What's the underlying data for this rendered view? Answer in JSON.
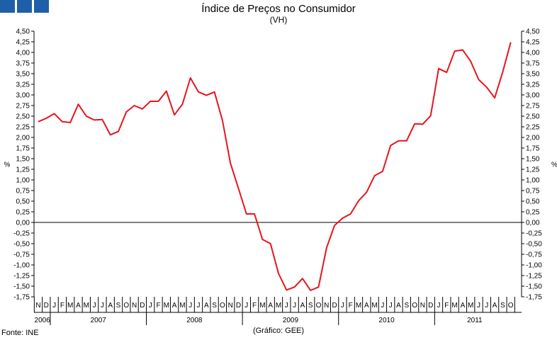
{
  "header": {
    "title": "Índice de Preços no Consumidor",
    "subtitle": "(VH)"
  },
  "footer": {
    "source": "Fonte: INE",
    "credit": "(Gráfico: GEE)"
  },
  "colors": {
    "logo": "#1f5fa8",
    "series": "#e8141c",
    "axis": "#000000"
  },
  "chart_data": {
    "type": "line",
    "title": "Índice de Preços no Consumidor",
    "subtitle": "(VH)",
    "ylabel": "%",
    "ylim": [
      -1.75,
      4.5
    ],
    "yticks": [
      4.5,
      4.25,
      4.0,
      3.75,
      3.5,
      3.25,
      3.0,
      2.75,
      2.5,
      2.25,
      2.0,
      1.75,
      1.5,
      1.25,
      1.0,
      0.75,
      0.5,
      0.25,
      0.0,
      -0.25,
      -0.5,
      -0.75,
      -1.0,
      -1.25,
      -1.5,
      -1.75
    ],
    "ytick_labels": [
      "4,50",
      "4,25",
      "4,00",
      "3,75",
      "3,50",
      "3,25",
      "3,00",
      "2,75",
      "2,50",
      "2,25",
      "2,00",
      "1,75",
      "1,50",
      "1,25",
      "1,00",
      "0,75",
      "0,50",
      "0,25",
      "0,00",
      "-0,25",
      "-0,50",
      "-0,75",
      "-1,00",
      "-1,25",
      "-1,50",
      "-1,75"
    ],
    "month_labels": [
      "N",
      "D",
      "J",
      "F",
      "M",
      "A",
      "M",
      "J",
      "J",
      "A",
      "S",
      "O",
      "N",
      "D",
      "J",
      "F",
      "M",
      "A",
      "M",
      "J",
      "J",
      "A",
      "S",
      "O",
      "N",
      "D",
      "J",
      "F",
      "M",
      "A",
      "M",
      "J",
      "J",
      "A",
      "S",
      "O",
      "N",
      "D",
      "J",
      "F",
      "M",
      "A",
      "M",
      "J",
      "J",
      "A",
      "S",
      "O",
      "N",
      "D",
      "J",
      "F",
      "M",
      "A",
      "M",
      "J",
      "J",
      "A",
      "S",
      "O"
    ],
    "years": [
      {
        "label": "2006",
        "months": 2
      },
      {
        "label": "2007",
        "months": 12
      },
      {
        "label": "2008",
        "months": 12
      },
      {
        "label": "2009",
        "months": 12
      },
      {
        "label": "2010",
        "months": 12
      },
      {
        "label": "2011",
        "months": 10
      }
    ],
    "series": [
      {
        "values": [
          2.37,
          2.45,
          2.56,
          2.37,
          2.35,
          2.78,
          2.5,
          2.41,
          2.42,
          2.06,
          2.14,
          2.6,
          2.75,
          2.67,
          2.85,
          2.85,
          3.09,
          2.53,
          2.78,
          3.4,
          3.07,
          2.99,
          3.07,
          2.4,
          1.39,
          0.8,
          0.2,
          0.2,
          -0.4,
          -0.5,
          -1.2,
          -1.59,
          -1.52,
          -1.32,
          -1.6,
          -1.52,
          -0.6,
          -0.07,
          0.1,
          0.2,
          0.51,
          0.71,
          1.1,
          1.2,
          1.81,
          1.92,
          1.92,
          2.32,
          2.31,
          2.51,
          3.62,
          3.53,
          4.03,
          4.06,
          3.79,
          3.36,
          3.18,
          2.93,
          3.54,
          4.24
        ]
      }
    ]
  }
}
